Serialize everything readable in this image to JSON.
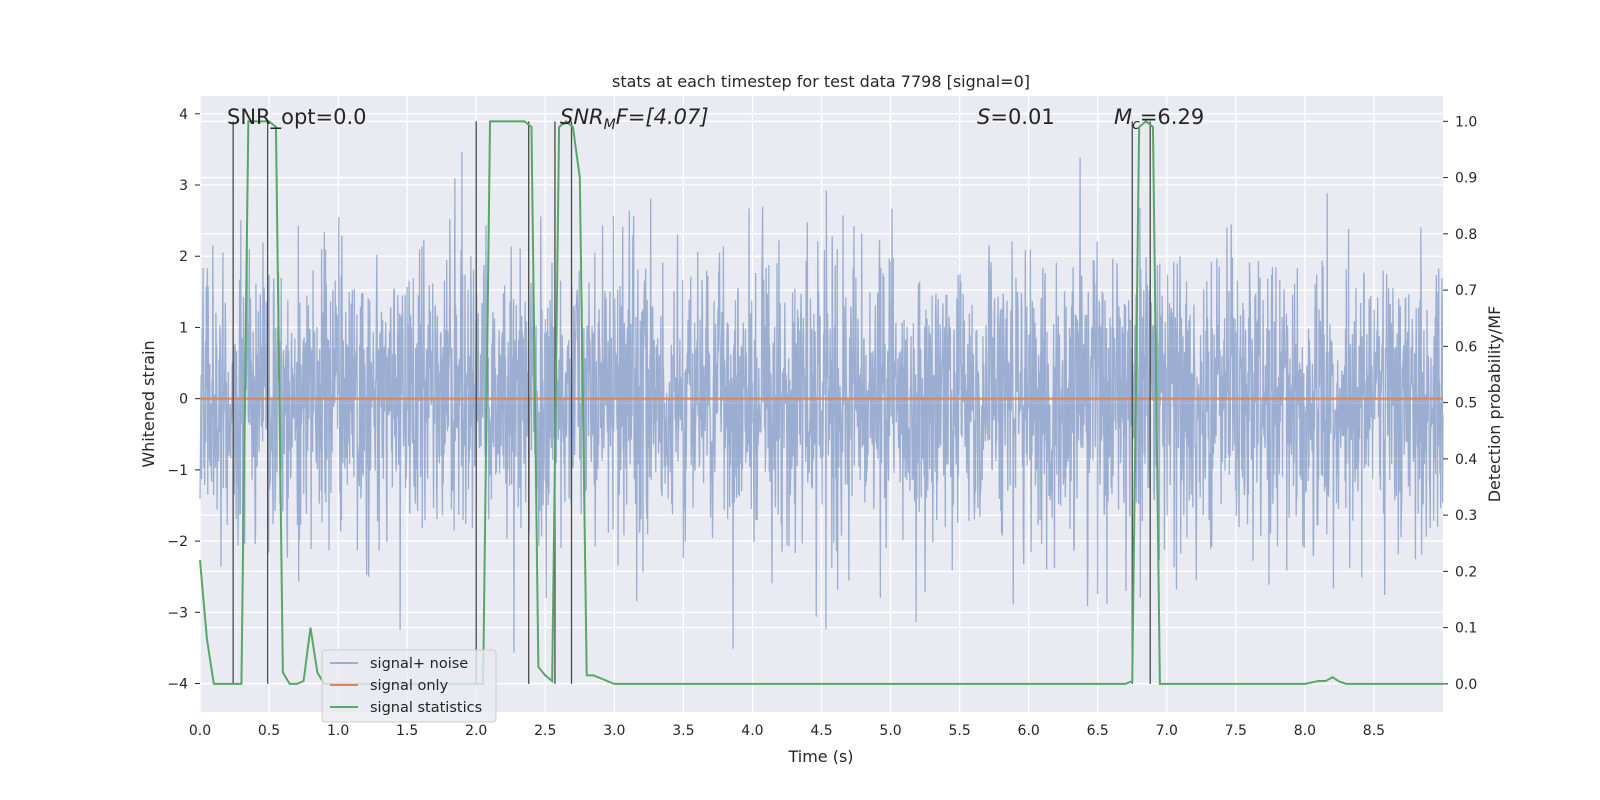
{
  "chart_data": {
    "type": "line",
    "title": "stats at each timestep for test data 7798 [signal=0]",
    "xlabel": "Time (s)",
    "ylabel": "Whitened strain",
    "ylabel_right": "Detection probability/MF",
    "xlim": [
      0,
      9.0
    ],
    "ylim": [
      -4.4,
      4.25
    ],
    "ylim_right": [
      -0.05,
      1.045
    ],
    "x_ticks": [
      "0.0",
      "0.5",
      "1.0",
      "1.5",
      "2.0",
      "2.5",
      "3.0",
      "3.5",
      "4.0",
      "4.5",
      "5.0",
      "5.5",
      "6.0",
      "6.5",
      "7.0",
      "7.5",
      "8.0",
      "8.5"
    ],
    "y_ticks": [
      "4",
      "3",
      "2",
      "1",
      "0",
      "−1",
      "−2",
      "−3",
      "−4"
    ],
    "y_ticks_right": [
      "1.0",
      "0.9",
      "0.8",
      "0.7",
      "0.6",
      "0.5",
      "0.4",
      "0.3",
      "0.2",
      "0.1",
      "0.0"
    ],
    "grid": true,
    "legend_placement": "lower-left",
    "annotations": {
      "snr_opt": "SNR_opt=0.0",
      "snr_mf_base": "SNR",
      "snr_mf_sub": "M",
      "snr_mf_rest": "F=[4.07]",
      "s_var": "S",
      "s_rest": "=0.01",
      "mc_var": "M",
      "mc_sub": "c",
      "mc_rest": "=6.29"
    },
    "series": [
      {
        "name": "signal+ noise",
        "axis": "left",
        "color": "#4c72b0",
        "description_level": "whitened gaussian noise, roughly within ±3.5",
        "envelope": {
          "sigma": 1.0,
          "peak_max": 3.75,
          "peak_min": -4.0
        }
      },
      {
        "name": "signal only",
        "axis": "left",
        "color": "#dd8452",
        "x": [
          0,
          9.0
        ],
        "values": [
          0,
          0
        ]
      },
      {
        "name": "signal statistics",
        "axis": "right",
        "color": "#55a868",
        "x": [
          0.0,
          0.05,
          0.1,
          0.15,
          0.2,
          0.25,
          0.3,
          0.35,
          0.4,
          0.45,
          0.5,
          0.55,
          0.6,
          0.65,
          0.7,
          0.75,
          0.8,
          0.85,
          0.9,
          0.95,
          1.0,
          2.0,
          2.05,
          2.1,
          2.15,
          2.2,
          2.25,
          2.3,
          2.35,
          2.4,
          2.45,
          2.5,
          2.55,
          2.6,
          2.65,
          2.7,
          2.75,
          2.8,
          2.85,
          2.9,
          3.0,
          3.5,
          4.0,
          4.5,
          5.0,
          5.5,
          6.0,
          6.5,
          6.7,
          6.75,
          6.8,
          6.85,
          6.9,
          6.95,
          7.0,
          7.5,
          8.0,
          8.1,
          8.15,
          8.2,
          8.25,
          8.3,
          8.5,
          9.0
        ],
        "values": [
          0.22,
          0.08,
          0.0,
          0.0,
          0.0,
          0.0,
          0.0,
          1.0,
          1.0,
          1.0,
          1.0,
          0.99,
          0.02,
          0.0,
          0.0,
          0.005,
          0.1,
          0.02,
          0.0,
          0.0,
          0.0,
          0.0,
          0.0,
          1.0,
          1.0,
          1.0,
          1.0,
          1.0,
          1.0,
          0.99,
          0.03,
          0.015,
          0.005,
          0.99,
          1.0,
          0.99,
          0.9,
          0.015,
          0.015,
          0.01,
          0.0,
          0.0,
          0.0,
          0.0,
          0.0,
          0.0,
          0.0,
          0.0,
          0.0,
          0.005,
          0.99,
          1.0,
          0.99,
          0.0,
          0.0,
          0.0,
          0.0,
          0.005,
          0.005,
          0.012,
          0.004,
          0.0,
          0.0,
          0.0
        ]
      }
    ],
    "vertical_markers": [
      0.24,
      0.49,
      2.0,
      2.38,
      2.57,
      2.69,
      6.75,
      6.88
    ]
  },
  "legend": {
    "items": [
      "signal+ noise",
      "signal only",
      "signal statistics"
    ]
  }
}
